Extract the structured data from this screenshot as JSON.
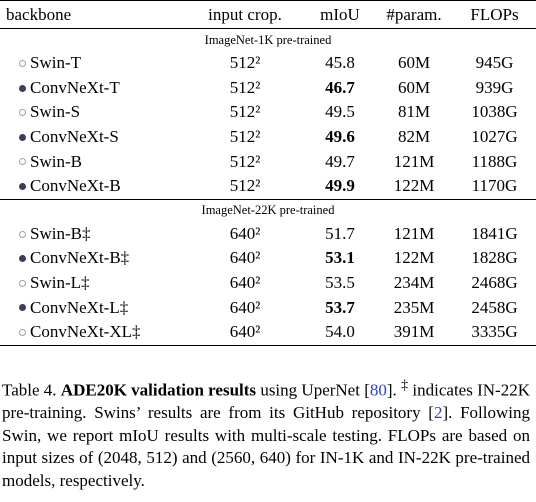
{
  "table": {
    "header": [
      "backbone",
      "input crop.",
      "mIoU",
      "#param.",
      "FLOPs"
    ],
    "sections": [
      {
        "title": "ImageNet-1K pre-trained",
        "rows": [
          [
            "Swin-T",
            "512²",
            "45.8",
            "60M",
            "945G"
          ],
          [
            "ConvNeXt-T",
            "512²",
            "46.7",
            "60M",
            "939G"
          ],
          [
            "Swin-S",
            "512²",
            "49.5",
            "81M",
            "1038G"
          ],
          [
            "ConvNeXt-S",
            "512²",
            "49.6",
            "82M",
            "1027G"
          ],
          [
            "Swin-B",
            "512²",
            "49.7",
            "121M",
            "1188G"
          ],
          [
            "ConvNeXt-B",
            "512²",
            "49.9",
            "122M",
            "1170G"
          ]
        ]
      },
      {
        "title": "ImageNet-22K pre-trained",
        "rows": [
          [
            "Swin-B‡",
            "640²",
            "51.7",
            "121M",
            "1841G"
          ],
          [
            "ConvNeXt-B‡",
            "640²",
            "53.1",
            "122M",
            "1828G"
          ],
          [
            "Swin-L‡",
            "640²",
            "53.5",
            "234M",
            "2468G"
          ],
          [
            "ConvNeXt-L‡",
            "640²",
            "53.7",
            "235M",
            "2458G"
          ],
          [
            "ConvNeXt-XL‡",
            "640²",
            "54.0",
            "391M",
            "3335G"
          ]
        ]
      }
    ]
  },
  "caption": [
    "Table 4.",
    "ADE20K validation results",
    "using UperNet [",
    "80",
    "].",
    "‡",
    "indicates IN-22K pre-training. Swins’ results are from its GitHub repository [",
    "2",
    "]. Following Swin, we report mIoU results with multi-scale testing. FLOPs are based on input sizes of (2048, 512) and (2560, 640) for IN-1K and IN-22K pre-trained models, respectively."
  ]
}
